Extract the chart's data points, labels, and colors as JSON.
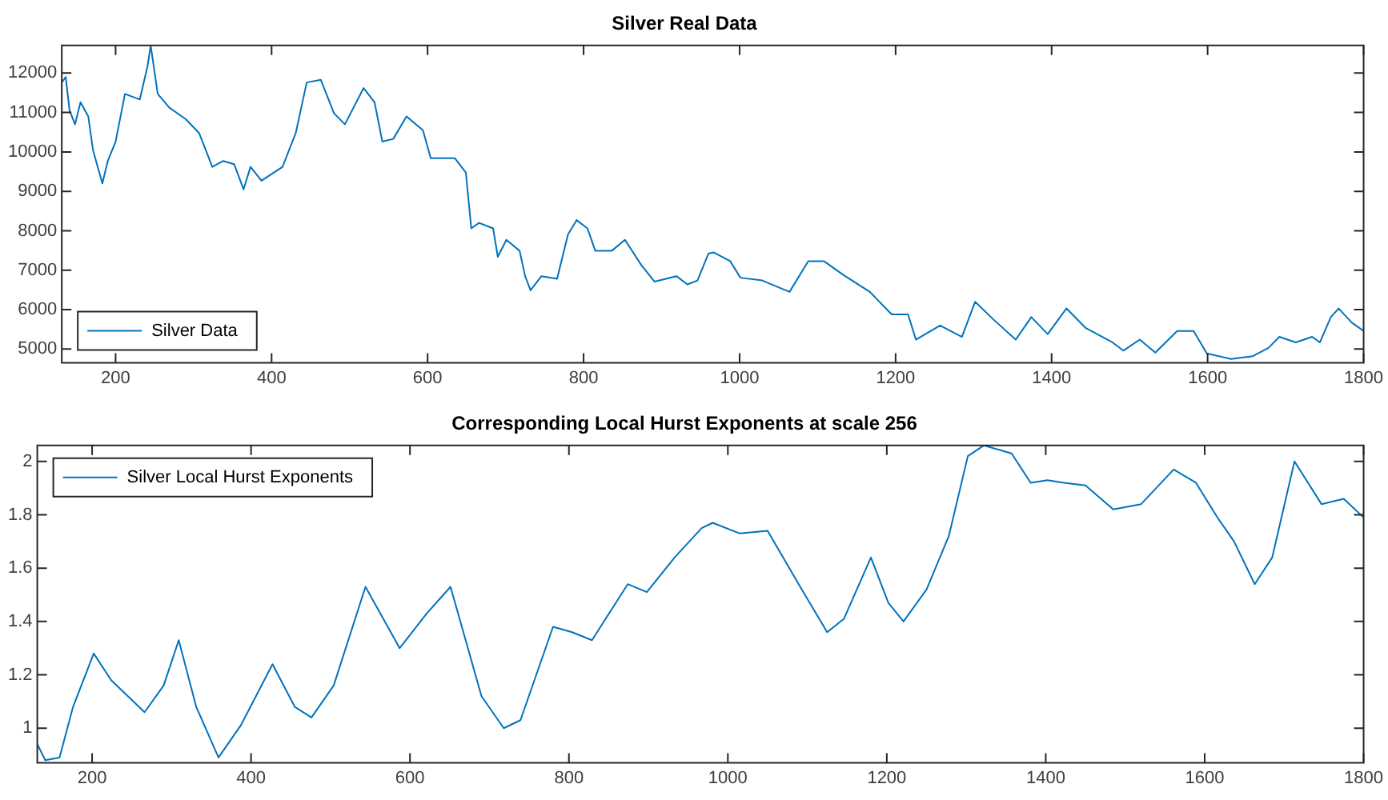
{
  "chart_data": [
    {
      "type": "line",
      "title": "Silver Real Data",
      "legend": "bottom left",
      "grid": false,
      "xlim": [
        131,
        1800
      ],
      "xticks": [
        200,
        400,
        600,
        800,
        1000,
        1200,
        1400,
        1600,
        1800
      ],
      "ylim": [
        4650,
        12700
      ],
      "yticks": [
        5000,
        6000,
        7000,
        8000,
        9000,
        10000,
        11000,
        12000
      ],
      "series": [
        {
          "name": "Silver Data",
          "color": "#0072bd",
          "x": [
            131,
            136,
            141,
            148,
            155,
            165,
            171,
            183,
            190,
            200,
            212,
            231,
            241,
            245,
            254,
            269,
            290,
            307,
            324,
            338,
            352,
            364,
            373,
            387,
            414,
            431,
            445,
            463,
            480,
            494,
            518,
            532,
            542,
            556,
            573,
            594,
            604,
            635,
            649,
            656,
            666,
            684,
            690,
            701,
            718,
            725,
            732,
            746,
            766,
            780,
            791,
            805,
            815,
            836,
            853,
            874,
            891,
            919,
            933,
            946,
            960,
            967,
            988,
            1001,
            1029,
            1064,
            1088,
            1108,
            1133,
            1167,
            1195,
            1216,
            1226,
            1257,
            1285,
            1302,
            1326,
            1354,
            1374,
            1395,
            1419,
            1444,
            1478,
            1492,
            1513,
            1533,
            1561,
            1582,
            1599,
            1630,
            1658,
            1678,
            1692,
            1713,
            1734,
            1744,
            1758,
            1768,
            1785,
            1800
          ],
          "values": [
            11760,
            11900,
            11050,
            10700,
            11260,
            10900,
            10050,
            9200,
            9770,
            10260,
            11470,
            11330,
            12180,
            12700,
            11470,
            11120,
            10830,
            10480,
            9620,
            9770,
            9690,
            9050,
            9620,
            9270,
            9620,
            10480,
            11760,
            11830,
            10980,
            10700,
            11620,
            11260,
            10260,
            10330,
            10900,
            10550,
            9840,
            9840,
            9480,
            8060,
            8200,
            8060,
            7340,
            7770,
            7490,
            6850,
            6490,
            6850,
            6780,
            7910,
            8270,
            8060,
            7490,
            7490,
            7770,
            7130,
            6710,
            6850,
            6640,
            6740,
            7420,
            7450,
            7230,
            6810,
            6740,
            6450,
            7230,
            7230,
            6880,
            6450,
            5880,
            5880,
            5240,
            5600,
            5310,
            6200,
            5740,
            5240,
            5810,
            5380,
            6030,
            5530,
            5170,
            4960,
            5240,
            4910,
            5460,
            5460,
            4890,
            4750,
            4820,
            5030,
            5310,
            5170,
            5310,
            5170,
            5810,
            6030,
            5670,
            5460
          ]
        }
      ]
    },
    {
      "type": "line",
      "title": "Corresponding Local Hurst Exponents at scale 256",
      "legend": "top left",
      "grid": false,
      "xlim": [
        131,
        1800
      ],
      "xticks": [
        200,
        400,
        600,
        800,
        1000,
        1200,
        1400,
        1600,
        1800
      ],
      "ylim": [
        0.87,
        2.06
      ],
      "yticks": [
        1,
        1.2,
        1.4,
        1.6,
        1.8,
        2
      ],
      "series": [
        {
          "name": "Silver Local Hurst Exponents",
          "color": "#0072bd",
          "x": [
            131,
            141,
            159,
            176,
            202,
            224,
            266,
            290,
            309,
            331,
            359,
            387,
            427,
            455,
            476,
            504,
            544,
            587,
            621,
            651,
            690,
            718,
            739,
            780,
            804,
            829,
            874,
            898,
            933,
            967,
            981,
            1015,
            1050,
            1091,
            1125,
            1146,
            1180,
            1202,
            1221,
            1250,
            1278,
            1302,
            1322,
            1357,
            1381,
            1402,
            1423,
            1450,
            1485,
            1520,
            1561,
            1589,
            1616,
            1637,
            1663,
            1685,
            1713,
            1747,
            1775,
            1800
          ],
          "values": [
            0.94,
            0.88,
            0.89,
            1.08,
            1.28,
            1.18,
            1.06,
            1.16,
            1.33,
            1.08,
            0.89,
            1.01,
            1.24,
            1.08,
            1.04,
            1.16,
            1.53,
            1.3,
            1.43,
            1.53,
            1.12,
            1.0,
            1.03,
            1.38,
            1.36,
            1.33,
            1.54,
            1.51,
            1.64,
            1.75,
            1.77,
            1.73,
            1.74,
            1.53,
            1.36,
            1.41,
            1.64,
            1.47,
            1.4,
            1.52,
            1.72,
            2.02,
            2.06,
            2.03,
            1.92,
            1.93,
            1.92,
            1.91,
            1.82,
            1.84,
            1.97,
            1.92,
            1.79,
            1.7,
            1.54,
            1.64,
            2.0,
            1.84,
            1.86,
            1.79
          ]
        }
      ]
    }
  ]
}
